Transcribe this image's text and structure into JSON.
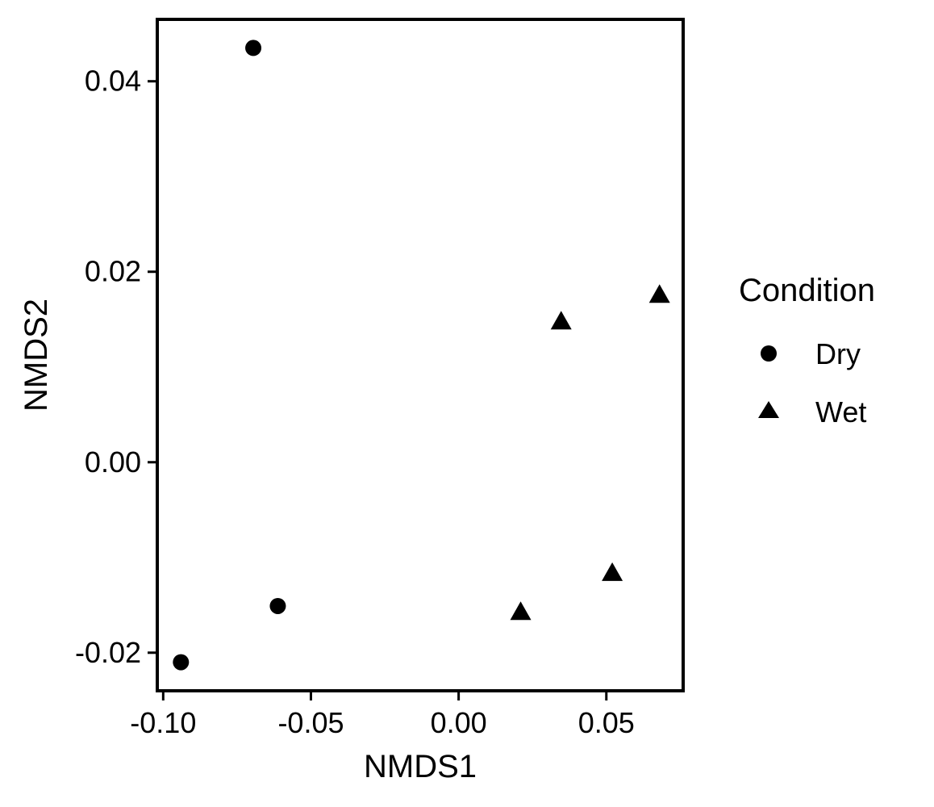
{
  "chart_data": {
    "type": "scatter",
    "title": "",
    "xlabel": "NMDS1",
    "ylabel": "NMDS2",
    "xlim": [
      -0.102,
      0.076
    ],
    "ylim": [
      -0.024,
      0.0465
    ],
    "grid": false,
    "legend": {
      "title": "Condition",
      "position": "right",
      "entries": [
        {
          "label": "Dry",
          "shape": "circle"
        },
        {
          "label": "Wet",
          "shape": "triangle"
        }
      ]
    },
    "x_ticks": [
      {
        "value": -0.1,
        "label": "-0.10"
      },
      {
        "value": -0.05,
        "label": "-0.05"
      },
      {
        "value": 0.0,
        "label": "0.00"
      },
      {
        "value": 0.05,
        "label": "0.05"
      }
    ],
    "y_ticks": [
      {
        "value": -0.02,
        "label": "-0.02"
      },
      {
        "value": 0.0,
        "label": "0.00"
      },
      {
        "value": 0.02,
        "label": "0.02"
      },
      {
        "value": 0.04,
        "label": "0.04"
      }
    ],
    "series": [
      {
        "name": "Dry",
        "shape": "circle",
        "color": "#000000",
        "points": [
          {
            "x": -0.0695,
            "y": 0.0435
          },
          {
            "x": -0.0612,
            "y": -0.0151
          },
          {
            "x": -0.094,
            "y": -0.021
          }
        ]
      },
      {
        "name": "Wet",
        "shape": "triangle",
        "color": "#000000",
        "points": [
          {
            "x": 0.068,
            "y": 0.0175
          },
          {
            "x": 0.0347,
            "y": 0.0147
          },
          {
            "x": 0.052,
            "y": -0.0117
          },
          {
            "x": 0.021,
            "y": -0.0158
          }
        ]
      }
    ]
  }
}
